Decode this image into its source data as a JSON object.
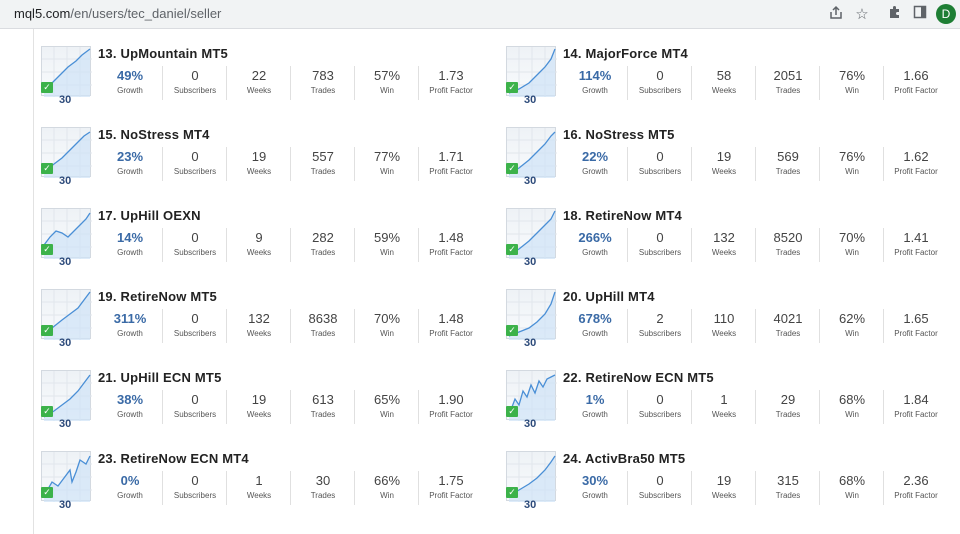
{
  "browser": {
    "url_host": "mql5.com",
    "url_path": "/en/users/tec_daniel/seller",
    "avatar_letter": "D"
  },
  "labels": {
    "growth": "Growth",
    "subscribers": "Subscribers",
    "weeks": "Weeks",
    "trades": "Trades",
    "win": "Win",
    "profit_factor": "Profit Factor",
    "days": "30"
  },
  "products": [
    {
      "title": "13. UpMountain MT5",
      "growth": "49%",
      "subscribers": "0",
      "weeks": "22",
      "trades": "783",
      "win": "57%",
      "profit_factor": "1.73"
    },
    {
      "title": "14. MajorForce MT4",
      "growth": "114%",
      "subscribers": "0",
      "weeks": "58",
      "trades": "2051",
      "win": "76%",
      "profit_factor": "1.66"
    },
    {
      "title": "15. NoStress MT4",
      "growth": "23%",
      "subscribers": "0",
      "weeks": "19",
      "trades": "557",
      "win": "77%",
      "profit_factor": "1.71"
    },
    {
      "title": "16. NoStress MT5",
      "growth": "22%",
      "subscribers": "0",
      "weeks": "19",
      "trades": "569",
      "win": "76%",
      "profit_factor": "1.62"
    },
    {
      "title": "17. UpHill OEXN",
      "growth": "14%",
      "subscribers": "0",
      "weeks": "9",
      "trades": "282",
      "win": "59%",
      "profit_factor": "1.48"
    },
    {
      "title": "18. RetireNow MT4",
      "growth": "266%",
      "subscribers": "0",
      "weeks": "132",
      "trades": "8520",
      "win": "70%",
      "profit_factor": "1.41"
    },
    {
      "title": "19. RetireNow MT5",
      "growth": "311%",
      "subscribers": "0",
      "weeks": "132",
      "trades": "8638",
      "win": "70%",
      "profit_factor": "1.48"
    },
    {
      "title": "20. UpHill MT4",
      "growth": "678%",
      "subscribers": "2",
      "weeks": "110",
      "trades": "4021",
      "win": "62%",
      "profit_factor": "1.65"
    },
    {
      "title": "21. UpHill ECN MT5",
      "growth": "38%",
      "subscribers": "0",
      "weeks": "19",
      "trades": "613",
      "win": "65%",
      "profit_factor": "1.90"
    },
    {
      "title": "22. RetireNow ECN MT5",
      "growth": "1%",
      "subscribers": "0",
      "weeks": "1",
      "trades": "29",
      "win": "68%",
      "profit_factor": "1.84"
    },
    {
      "title": "23. RetireNow ECN MT4",
      "growth": "0%",
      "subscribers": "0",
      "weeks": "1",
      "trades": "30",
      "win": "66%",
      "profit_factor": "1.75"
    },
    {
      "title": "24. ActivBra50 MT5",
      "growth": "30%",
      "subscribers": "0",
      "weeks": "19",
      "trades": "315",
      "win": "68%",
      "profit_factor": "2.36"
    }
  ],
  "colors": {
    "growth_text": "#3a6aa6",
    "thumb_line": "#4a8fd6",
    "thumb_fill": "#cfe3f7",
    "check_green": "#3cb24a"
  }
}
